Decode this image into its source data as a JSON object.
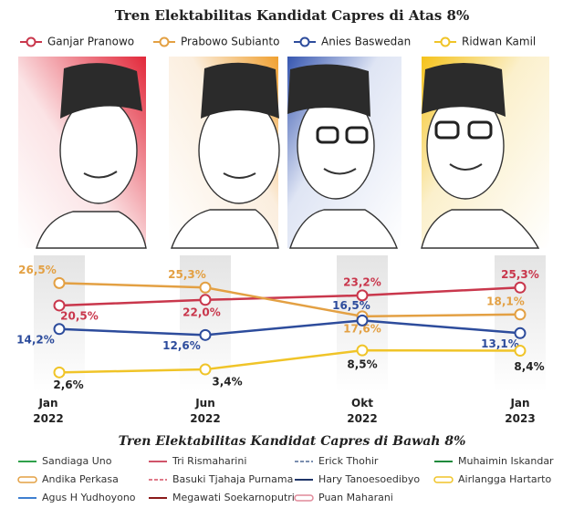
{
  "chart_data": {
    "type": "line",
    "title": "Tren Elektabilitas Kandidat Capres di Atas 8%",
    "categories": [
      "Jan 2022",
      "Jun 2022",
      "Okt 2022",
      "Jan 2023"
    ],
    "ylim": [
      0,
      30
    ],
    "series": [
      {
        "name": "Ganjar Pranowo",
        "color": "#c9374c",
        "values": [
          20.5,
          22.0,
          23.2,
          25.3
        ],
        "value_labels": [
          "20,5%",
          "22,0%",
          "23,2%",
          "25,3%"
        ]
      },
      {
        "name": "Prabowo Subianto",
        "color": "#e3a043",
        "values": [
          26.5,
          25.3,
          17.6,
          18.1
        ],
        "value_labels": [
          "26,5%",
          "25,3%",
          "17,6%",
          "18,1%"
        ]
      },
      {
        "name": "Anies Baswedan",
        "color": "#2d4c9c",
        "values": [
          14.2,
          12.6,
          16.5,
          13.1
        ],
        "value_labels": [
          "14,2%",
          "12,6%",
          "16,5%",
          "13,1%"
        ]
      },
      {
        "name": "Ridwan Kamil",
        "color": "#f0c428",
        "values": [
          2.6,
          3.4,
          8.5,
          8.4
        ],
        "value_labels": [
          "2,6%",
          "3,4%",
          "8,5%",
          "8,4%"
        ]
      }
    ]
  },
  "below_legend": {
    "title": "Tren Elektabilitas Kandidat Capres di Bawah 8%",
    "items": [
      {
        "name": "Sandiaga Uno",
        "color": "#2fa14a",
        "style": "solid"
      },
      {
        "name": "Tri Rismaharini",
        "color": "#d0546a",
        "style": "solid"
      },
      {
        "name": "Erick Thohir",
        "color": "#7b8fb0",
        "style": "dashed"
      },
      {
        "name": "Muhaimin Iskandar",
        "color": "#1f8a3c",
        "style": "solid"
      },
      {
        "name": "Andika Perkasa",
        "color": "#e3a043",
        "style": "hollow"
      },
      {
        "name": "Basuki Tjahaja Purnama",
        "color": "#e07a8a",
        "style": "dashed"
      },
      {
        "name": "Hary Tanoesoedibyo",
        "color": "#1f3569",
        "style": "solid"
      },
      {
        "name": "Airlangga Hartarto",
        "color": "#f0c428",
        "style": "hollow"
      },
      {
        "name": "Agus H Yudhoyono",
        "color": "#3f7fd0",
        "style": "solid"
      },
      {
        "name": "Megawati Soekarnoputri",
        "color": "#8a1a1a",
        "style": "solid"
      },
      {
        "name": "Puan Maharani",
        "color": "#e08a9a",
        "style": "hollow"
      }
    ]
  }
}
